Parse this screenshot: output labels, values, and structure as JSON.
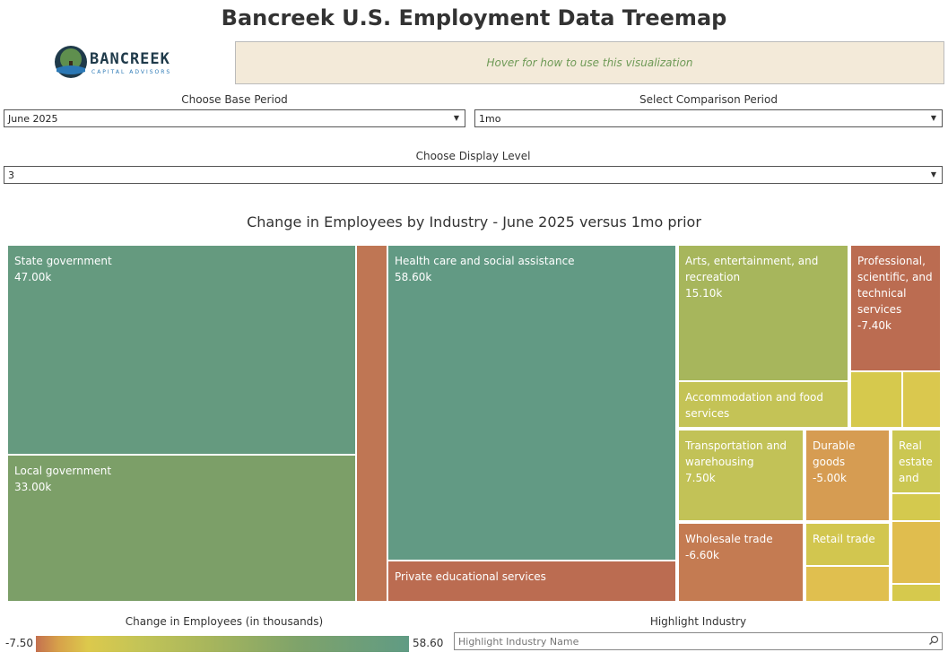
{
  "header": {
    "title": "Bancreek U.S. Employment Data Treemap"
  },
  "logo": {
    "wordmark": "BANCREEK",
    "tagline": "CAPITAL ADVISORS"
  },
  "help": {
    "text": "Hover for how to use this visualization"
  },
  "controls": {
    "base_period": {
      "label": "Choose Base Period",
      "value": "June 2025"
    },
    "comparison_period": {
      "label": "Select Comparison Period",
      "value": "1mo"
    },
    "display_level": {
      "label": "Choose Display Level",
      "value": "3"
    }
  },
  "chart": {
    "title": "Change in Employees by Industry - June 2025 versus 1mo prior"
  },
  "tiles": {
    "state_gov": {
      "label": "State government",
      "value": "47.00k"
    },
    "local_gov": {
      "label": "Local government",
      "value": "33.00k"
    },
    "health_care": {
      "label": "Health care and social assistance",
      "value": "58.60k"
    },
    "private_edu": {
      "label": "Private educational services"
    },
    "arts": {
      "label": "Arts, entertainment, and recreation",
      "value": "15.10k"
    },
    "professional": {
      "label": "Professional, scientific, and technical services",
      "value": "-7.40k"
    },
    "accommodation": {
      "label": "Accommodation and food services"
    },
    "transportation": {
      "label": "Transportation and warehousing",
      "value": "7.50k"
    },
    "durable": {
      "label": "Durable goods",
      "value": "-5.00k"
    },
    "real_estate": {
      "label": "Real estate and"
    },
    "wholesale": {
      "label": "Wholesale trade",
      "value": "-6.60k"
    },
    "retail": {
      "label": "Retail trade"
    }
  },
  "colors": {
    "strong_positive": "#659a84",
    "positive": "#7c9f68",
    "moderate_positive": "#a7b65c",
    "small_positive": "#c1c257",
    "near_zero": "#d4c94e",
    "small_negative": "#e0bd4e",
    "moderate_negative": "#d59b51",
    "negative": "#c17650",
    "strong_negative": "#bb6c51"
  },
  "legend": {
    "label": "Change in Employees (in thousands)",
    "min": "-7.50",
    "max": "58.60"
  },
  "highlight": {
    "label": "Highlight Industry",
    "placeholder": "Highlight Industry Name"
  }
}
